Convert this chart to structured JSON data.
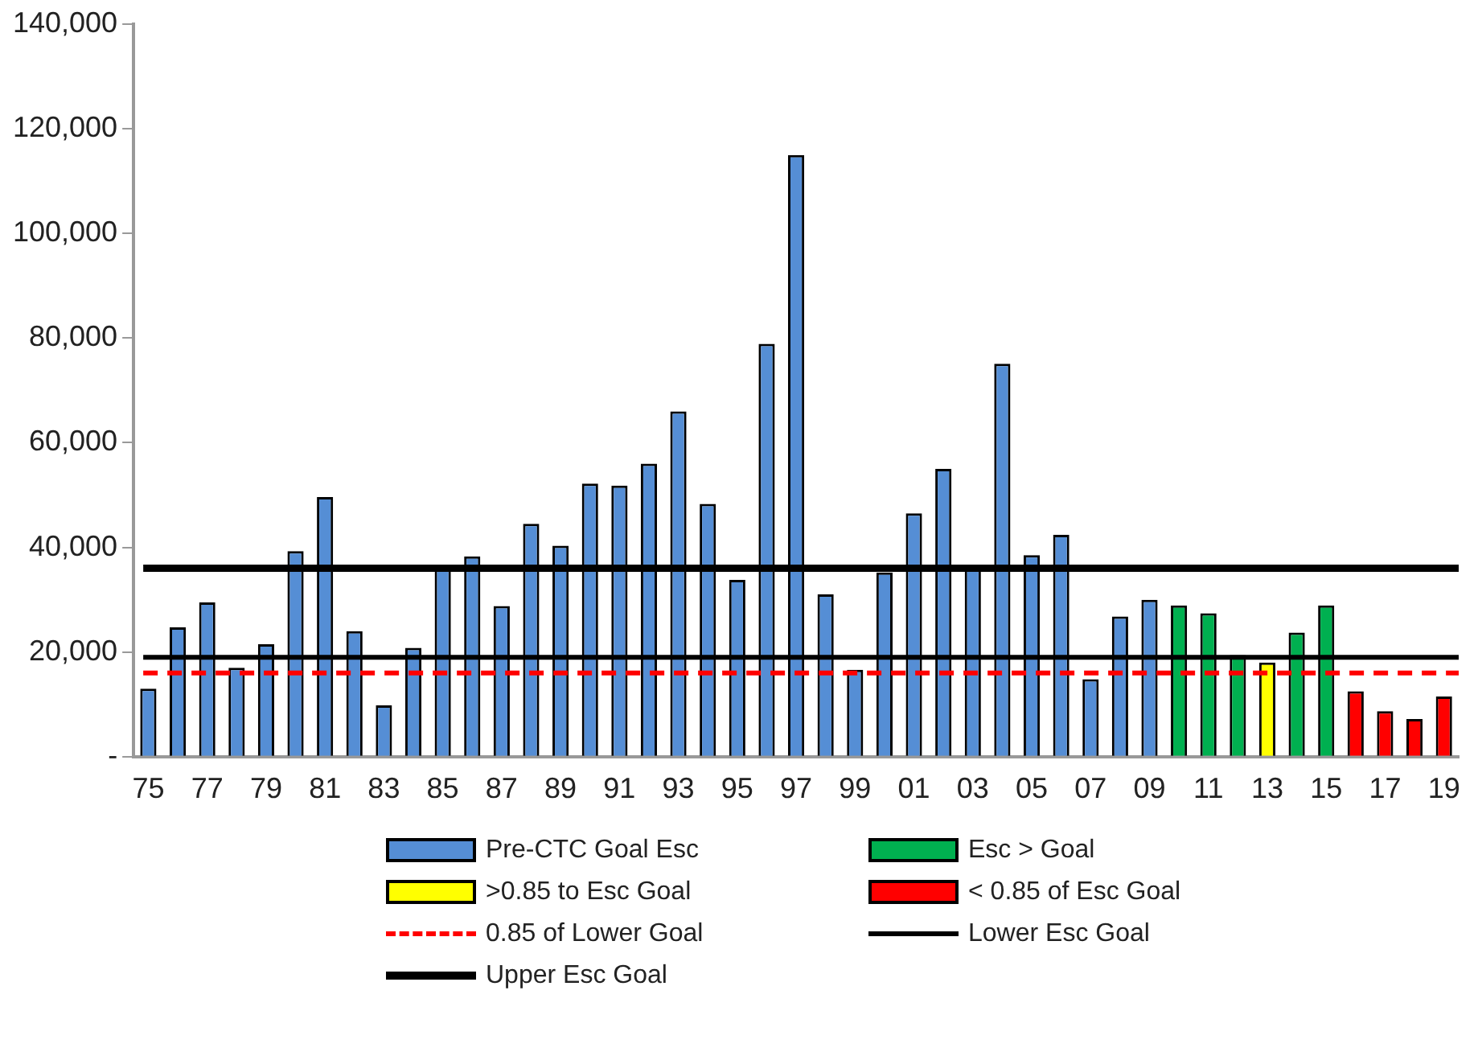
{
  "chart_data": {
    "type": "bar",
    "categories": [
      "75",
      null,
      "77",
      null,
      "79",
      null,
      "81",
      null,
      "83",
      null,
      "85",
      null,
      "87",
      null,
      "89",
      null,
      "91",
      null,
      "93",
      null,
      "95",
      null,
      "97",
      null,
      "99",
      null,
      "01",
      null,
      "03",
      null,
      "05",
      null,
      "07",
      null,
      "09",
      null,
      "11",
      null,
      "13",
      null,
      "15",
      null,
      "17",
      null,
      "19"
    ],
    "series": [
      {
        "name": "Pre-CTC Goal Esc",
        "color": "#558ed5",
        "values": [
          13000,
          24700,
          29500,
          17000,
          21500,
          39300,
          49600,
          24000,
          9800,
          20800,
          36000,
          38300,
          28800,
          44500,
          40300,
          52200,
          51800,
          56000,
          66000,
          48300,
          33800,
          78900,
          115000,
          31000,
          16600,
          35200,
          46500,
          55000,
          36000,
          75100,
          38500,
          42400,
          14800,
          26800,
          30000,
          null,
          null,
          null,
          null,
          null,
          null,
          null,
          null,
          null,
          null
        ]
      },
      {
        "name": "Esc > Goal",
        "color": "#00b050",
        "values": [
          null,
          null,
          null,
          null,
          null,
          null,
          null,
          null,
          null,
          null,
          null,
          null,
          null,
          null,
          null,
          null,
          null,
          null,
          null,
          null,
          null,
          null,
          null,
          null,
          null,
          null,
          null,
          null,
          null,
          null,
          null,
          null,
          null,
          null,
          null,
          28900,
          27400,
          19400,
          null,
          23700,
          28900,
          null,
          null,
          null,
          null
        ]
      },
      {
        "name": ">0.85 to  Esc Goal",
        "color": "#ffff00",
        "values": [
          null,
          null,
          null,
          null,
          null,
          null,
          null,
          null,
          null,
          null,
          null,
          null,
          null,
          null,
          null,
          null,
          null,
          null,
          null,
          null,
          null,
          null,
          null,
          null,
          null,
          null,
          null,
          null,
          null,
          null,
          null,
          null,
          null,
          null,
          null,
          null,
          null,
          null,
          18000,
          null,
          null,
          null,
          null,
          null,
          null
        ]
      },
      {
        "name": "< 0.85 of  Esc Goal",
        "color": "#ff0000",
        "values": [
          null,
          null,
          null,
          null,
          null,
          null,
          null,
          null,
          null,
          null,
          null,
          null,
          null,
          null,
          null,
          null,
          null,
          null,
          null,
          null,
          null,
          null,
          null,
          null,
          null,
          null,
          null,
          null,
          null,
          null,
          null,
          null,
          null,
          null,
          null,
          null,
          null,
          null,
          null,
          null,
          null,
          12500,
          8700,
          7200,
          11500
        ]
      }
    ],
    "ref_lines": [
      {
        "axis": "y",
        "value": 16000,
        "label": "0.85 of Lower Goal",
        "color": "#ff0000",
        "line_style": "dashed"
      },
      {
        "axis": "y",
        "value": 19000,
        "label": "Lower Esc Goal",
        "color": "#000000",
        "line_style": "solid"
      },
      {
        "axis": "y",
        "value": 36000,
        "label": "Upper Esc Goal",
        "color": "#000000",
        "line_style": "solid"
      }
    ],
    "ylim": [
      0,
      140000
    ],
    "yticks": [
      {
        "value": 0,
        "label": "-"
      },
      {
        "value": 20000,
        "label": "20,000"
      },
      {
        "value": 40000,
        "label": "40,000"
      },
      {
        "value": 60000,
        "label": "60,000"
      },
      {
        "value": 80000,
        "label": "80,000"
      },
      {
        "value": 100000,
        "label": "100,000"
      },
      {
        "value": 120000,
        "label": "120,000"
      },
      {
        "value": 140000,
        "label": "140,000"
      }
    ],
    "grid": false,
    "legend": "bottom"
  }
}
